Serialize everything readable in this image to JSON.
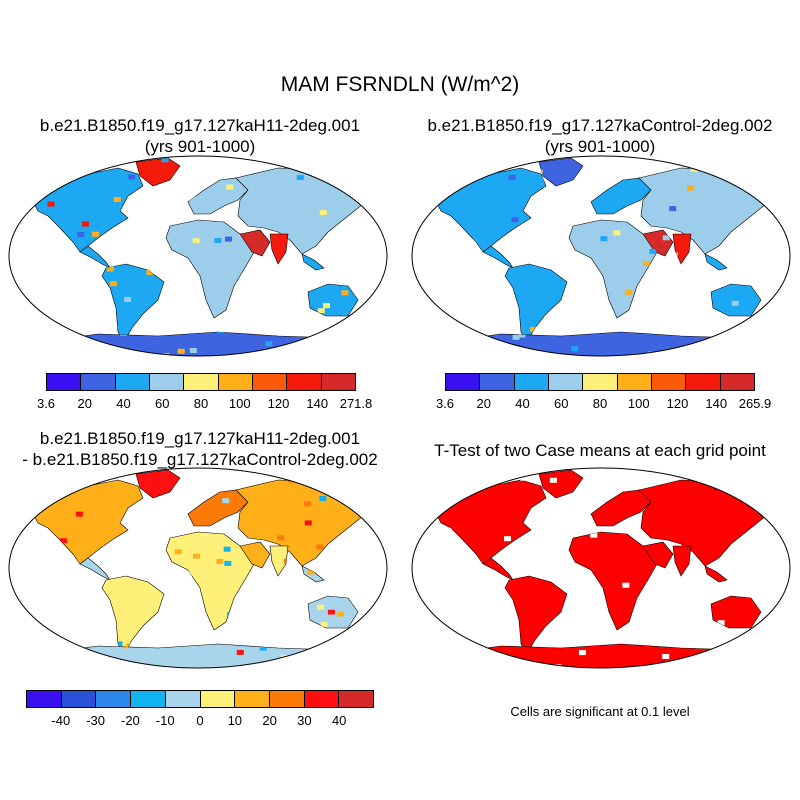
{
  "figure": {
    "title": "MAM FSRNDLN (W/m^2)"
  },
  "panels": {
    "case1": {
      "title_line1": "b.e21.B1850.f19_g17.127kaH11-2deg.001",
      "title_line2": "(yrs 901-1000)"
    },
    "case2": {
      "title_line1": "b.e21.B1850.f19_g17.127kaControl-2deg.002",
      "title_line2": "(yrs 901-1000)"
    },
    "diff": {
      "title_line1": "b.e21.B1850.f19_g17.127kaH11-2deg.001",
      "title_line2": "- b.e21.B1850.f19_g17.127kaControl-2deg.002"
    },
    "ttest": {
      "title": "T-Test of two Case means at each grid point",
      "note": "Cells are significant at 0.1 level",
      "color": "#ff0000"
    }
  },
  "colorbars": {
    "case1": {
      "labels": [
        "3.6",
        "20",
        "40",
        "60",
        "80",
        "100",
        "120",
        "140",
        "271.8"
      ],
      "colors": [
        "#3a10f0",
        "#3f64e2",
        "#1ca8f2",
        "#9ccdeb",
        "#fff07a",
        "#ffb019",
        "#fc5a08",
        "#f41a0c",
        "#d62a2a"
      ]
    },
    "case2": {
      "labels": [
        "3.6",
        "20",
        "40",
        "60",
        "80",
        "100",
        "120",
        "140",
        "265.9"
      ],
      "colors": [
        "#3a10f0",
        "#3f64e2",
        "#1ca8f2",
        "#9ccdeb",
        "#fff07a",
        "#ffb019",
        "#fc5a08",
        "#f41a0c",
        "#d62a2a"
      ]
    },
    "diff": {
      "labels": [
        "-40",
        "-30",
        "-20",
        "-10",
        "0",
        "10",
        "20",
        "30",
        "40"
      ],
      "colors": [
        "#3a10f0",
        "#2a52d8",
        "#2a86e8",
        "#12b4f0",
        "#a8d4ec",
        "#fff07a",
        "#ffb019",
        "#fc7a08",
        "#ff1010",
        "#d62a2a"
      ]
    }
  }
}
